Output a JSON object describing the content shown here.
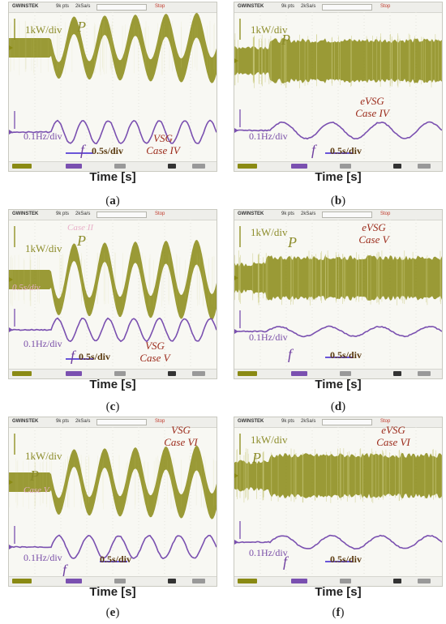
{
  "scope_header": {
    "brand": "GWINSTEK",
    "field1": "9k pts",
    "field2": "2kSa/s",
    "status": "Stop"
  },
  "colors": {
    "power": "#8a8a14",
    "power_light": "#c7c77a",
    "freq": "#7a50b0",
    "annotation": "#9b2a1a",
    "arrow": "#3a1fd0"
  },
  "labels": {
    "p_scale": "1kW/div",
    "f_scale": "0.1Hz/div",
    "p": "P",
    "f": "f",
    "time_div": "0.5s/div",
    "time_axis": "Time [s]"
  },
  "panels": [
    {
      "id": "a",
      "caption_open": "(",
      "caption_letter": "a",
      "caption_close": ")",
      "method": "VSG",
      "case": "Case IV",
      "ghost_a": "",
      "ghost_b": ""
    },
    {
      "id": "b",
      "caption_open": "(",
      "caption_letter": "b",
      "caption_close": ")",
      "method": "eVSG",
      "case": "Case IV",
      "ghost_a": "",
      "ghost_b": ""
    },
    {
      "id": "c",
      "caption_open": "(",
      "caption_letter": "c",
      "caption_close": ")",
      "method": "VSG",
      "case": "Case V",
      "ghost_a": "Case II",
      "ghost_b": "0.5s/div"
    },
    {
      "id": "d",
      "caption_open": "(",
      "caption_letter": "d",
      "caption_close": ")",
      "method": "eVSG",
      "case": "Case V",
      "ghost_a": "",
      "ghost_b": ""
    },
    {
      "id": "e",
      "caption_open": "(",
      "caption_letter": "e",
      "caption_close": ")",
      "method": "VSG",
      "case": "Case VI",
      "ghost_a": "Case V",
      "ghost_b": ""
    },
    {
      "id": "f",
      "caption_open": "(",
      "caption_letter": "f",
      "caption_close": ")",
      "method": "eVSG",
      "case": "Case VI",
      "ghost_a": "",
      "ghost_b": ""
    }
  ]
}
